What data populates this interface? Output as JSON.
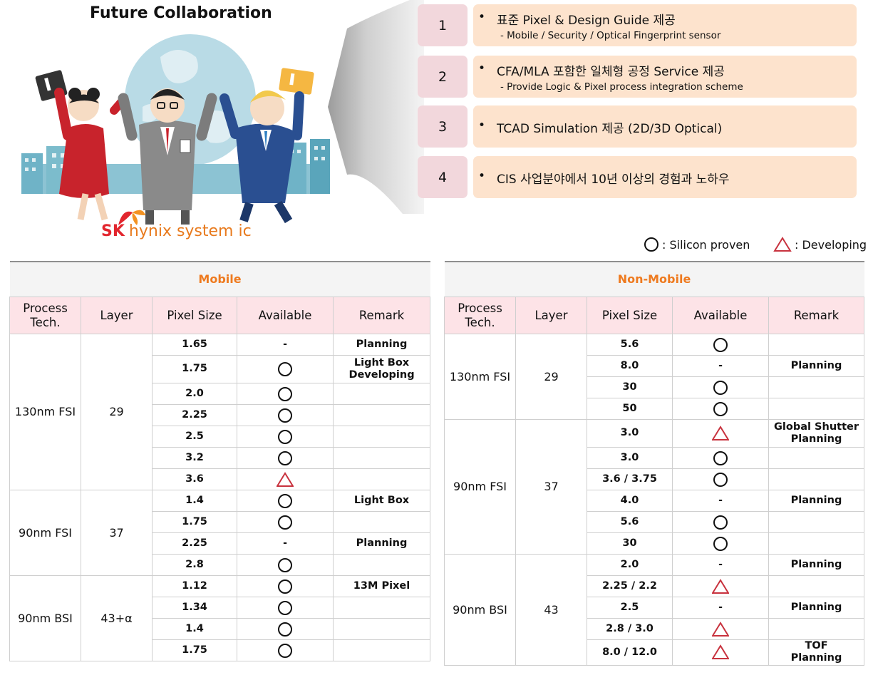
{
  "illustration": {
    "title": "Future Collaboration",
    "logo_sk": "SK",
    "logo_text": "hynix system ic"
  },
  "features": [
    {
      "num": "1",
      "line1": "표준 Pixel & Design Guide 제공",
      "line2": "- Mobile / Security / Optical Fingerprint sensor"
    },
    {
      "num": "2",
      "line1": "CFA/MLA 포함한 일체형 공정 Service 제공",
      "line2": "- Provide Logic & Pixel process integration scheme"
    },
    {
      "num": "3",
      "line1": "TCAD Simulation 제공 (2D/3D Optical)",
      "line2": ""
    },
    {
      "num": "4",
      "line1": "CIS 사업분야에서 10년 이상의 경험과 노하우",
      "line2": ""
    }
  ],
  "legend": {
    "silicon_proven": ": Silicon proven",
    "developing": ": Developing"
  },
  "tables": {
    "mobile": {
      "title": "Mobile",
      "headers": [
        "Process\nTech.",
        "Layer",
        "Pixel Size",
        "Available",
        "Remark"
      ],
      "groups": [
        {
          "process": "130nm FSI",
          "layer": "29",
          "rows": [
            {
              "pixel": "1.65",
              "available": "dash",
              "remark": "Planning"
            },
            {
              "pixel": "1.75",
              "available": "circle",
              "remark": "Light Box\nDeveloping",
              "tall": true
            },
            {
              "pixel": "2.0",
              "available": "circle",
              "remark": ""
            },
            {
              "pixel": "2.25",
              "available": "circle",
              "remark": ""
            },
            {
              "pixel": "2.5",
              "available": "circle",
              "remark": ""
            },
            {
              "pixel": "3.2",
              "available": "circle",
              "remark": ""
            },
            {
              "pixel": "3.6",
              "available": "triangle",
              "remark": ""
            }
          ]
        },
        {
          "process": "90nm FSI",
          "layer": "37",
          "rows": [
            {
              "pixel": "1.4",
              "available": "circle",
              "remark": "Light Box"
            },
            {
              "pixel": "1.75",
              "available": "circle",
              "remark": ""
            },
            {
              "pixel": "2.25",
              "available": "dash",
              "remark": "Planning"
            },
            {
              "pixel": "2.8",
              "available": "circle",
              "remark": ""
            }
          ]
        },
        {
          "process": "90nm BSI",
          "layer": "43+α",
          "rows": [
            {
              "pixel": "1.12",
              "available": "circle",
              "remark": "13M Pixel"
            },
            {
              "pixel": "1.34",
              "available": "circle",
              "remark": ""
            },
            {
              "pixel": "1.4",
              "available": "circle",
              "remark": ""
            },
            {
              "pixel": "1.75",
              "available": "circle",
              "remark": ""
            }
          ]
        }
      ]
    },
    "nonmobile": {
      "title": "Non-Mobile",
      "headers": [
        "Process\nTech.",
        "Layer",
        "Pixel Size",
        "Available",
        "Remark"
      ],
      "groups": [
        {
          "process": "130nm FSI",
          "layer": "29",
          "rows": [
            {
              "pixel": "5.6",
              "available": "circle",
              "remark": ""
            },
            {
              "pixel": "8.0",
              "available": "dash",
              "remark": "Planning"
            },
            {
              "pixel": "30",
              "available": "circle",
              "remark": ""
            },
            {
              "pixel": "50",
              "available": "circle",
              "remark": ""
            }
          ]
        },
        {
          "process": "90nm FSI",
          "layer": "37",
          "rows": [
            {
              "pixel": "3.0",
              "available": "triangle",
              "remark": "Global Shutter\nPlanning",
              "tall": true
            },
            {
              "pixel": "3.0",
              "available": "circle",
              "remark": ""
            },
            {
              "pixel": "3.6 / 3.75",
              "available": "circle",
              "remark": ""
            },
            {
              "pixel": "4.0",
              "available": "dash",
              "remark": "Planning"
            },
            {
              "pixel": "5.6",
              "available": "circle",
              "remark": ""
            },
            {
              "pixel": "30",
              "available": "circle",
              "remark": ""
            }
          ]
        },
        {
          "process": "90nm BSI",
          "layer": "43",
          "rows": [
            {
              "pixel": "2.0",
              "available": "dash",
              "remark": "Planning"
            },
            {
              "pixel": "2.25 / 2.2",
              "available": "triangle",
              "remark": ""
            },
            {
              "pixel": "2.5",
              "available": "dash",
              "remark": "Planning"
            },
            {
              "pixel": "2.8 / 3.0",
              "available": "triangle",
              "remark": ""
            },
            {
              "pixel": "8.0 / 12.0",
              "available": "triangle",
              "remark": "TOF\nPlanning"
            }
          ]
        }
      ]
    }
  }
}
